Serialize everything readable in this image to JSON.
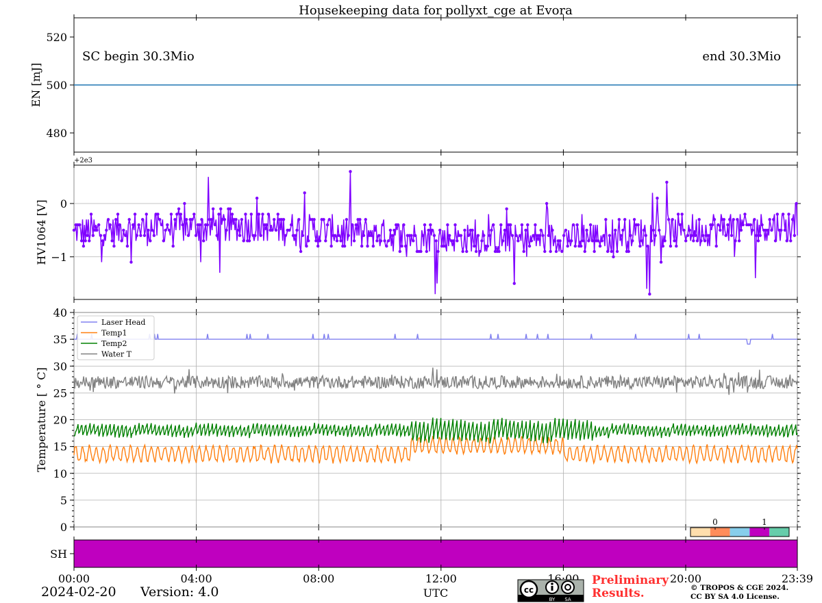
{
  "title": "Housekeeping data for pollyxt_cge at Evora",
  "footer": {
    "date": "2024-02-20",
    "version": "Version: 4.0",
    "xlabel": "UTC",
    "preliminary_line1": "Preliminary",
    "preliminary_line2": "Results.",
    "copyright_line1": "© TROPOS & CGE 2024.",
    "copyright_line2": "CC BY SA 4.0 License.",
    "license_badge": {
      "by": "BY",
      "sa": "SA",
      "icon": "cc-by-sa-icon"
    }
  },
  "chart_data": [
    {
      "id": "energy",
      "type": "line",
      "ylabel": "EN [mJ]",
      "ylim": [
        472,
        528
      ],
      "yticks": [
        480,
        500,
        520
      ],
      "annotation_left": "SC begin 30.3Mio",
      "annotation_right": "end 30.3Mio",
      "series": [
        {
          "color": "#1f77b4",
          "x": [
            0,
            23.65
          ],
          "y": [
            500,
            500
          ]
        }
      ],
      "grid": false
    },
    {
      "id": "hv1064",
      "type": "line",
      "ylabel": "HV1064 [V]",
      "offset_text": "+2e3",
      "ylim": [
        -1.8,
        0.72
      ],
      "yticks": [
        0,
        -1
      ],
      "ytick_labels": [
        "0",
        "−1"
      ],
      "series": [
        {
          "color": "#7f00ff",
          "markers": true,
          "base": -0.55,
          "spread": 0.3,
          "min": -1.7,
          "max": 0.6
        }
      ],
      "grid": true
    },
    {
      "id": "temperature",
      "type": "line",
      "ylabel": "Temperature [ $^\\circ C$]",
      "ylabel_display": "Temperature [ ° C]",
      "ylim": [
        0,
        40
      ],
      "yticks": [
        0,
        5,
        10,
        15,
        20,
        25,
        30,
        35,
        40
      ],
      "legend": [
        {
          "name": "Laser Head",
          "color": "#8080f0"
        },
        {
          "name": "Temp1",
          "color": "#ff7f0e"
        },
        {
          "name": "Temp2",
          "color": "#008000"
        },
        {
          "name": "Water T",
          "color": "#808080"
        }
      ],
      "legend_position": "upper-left",
      "series": [
        {
          "name": "Laser Head",
          "color": "#8080f0",
          "base": 35.0,
          "spikes_to": 36.0
        },
        {
          "name": "Temp1",
          "color": "#ff7f0e",
          "base": 13.6,
          "amplitude": 1.4
        },
        {
          "name": "Temp2",
          "color": "#008000",
          "base": 18.0,
          "amplitude": 1.2
        },
        {
          "name": "Water T",
          "color": "#808080",
          "base": 27.0,
          "amplitude": 1.2
        }
      ],
      "grid": true
    },
    {
      "id": "shutter",
      "type": "heatmap",
      "ylabel": "SH",
      "value": 1,
      "color": "#bf00bf",
      "colorbar_ticks": [
        "0",
        "1"
      ],
      "colorbar_colors": [
        "#ffdead",
        "#ff8c5a",
        "#87ceeb",
        "#bf00bf",
        "#66cdaa"
      ]
    }
  ],
  "xaxis": {
    "range": [
      0,
      23.65
    ],
    "ticks": [
      0,
      4,
      8,
      12,
      16,
      20,
      23.65
    ],
    "tick_labels": [
      "00:00",
      "04:00",
      "08:00",
      "12:00",
      "16:00",
      "20:00",
      "23:39"
    ]
  }
}
